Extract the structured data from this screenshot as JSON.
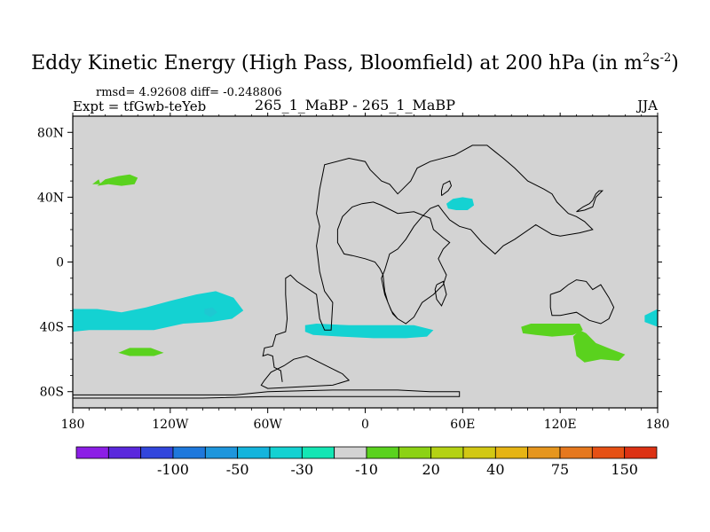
{
  "chart_data": {
    "type": "heatmap",
    "map": "world filled contour plot (cylindrical equidistant)",
    "title": "Eddy Kinetic Energy (High Pass, Bloomfield) at 200 hPa (in m",
    "title_units_suffix": "s",
    "title_sup1": "2",
    "title_sup2": "-2",
    "title_close": ")",
    "stats_label": "rmsd= 4.92608 diff= -0.248806",
    "experiment_label": "Expt = tfGwb-teYeb",
    "center_label": "265_1_MaBP - 265_1_MaBP",
    "season_label": "JJA",
    "xlim": [
      -180,
      180
    ],
    "ylim": [
      -90,
      90
    ],
    "x_ticks": [
      {
        "value": -180,
        "label": "180"
      },
      {
        "value": -120,
        "label": "120W"
      },
      {
        "value": -60,
        "label": "60W"
      },
      {
        "value": 0,
        "label": "0"
      },
      {
        "value": 60,
        "label": "60E"
      },
      {
        "value": 120,
        "label": "120E"
      },
      {
        "value": 180,
        "label": "180"
      }
    ],
    "y_ticks": [
      {
        "value": 80,
        "label": "80N"
      },
      {
        "value": 40,
        "label": "40N"
      },
      {
        "value": 0,
        "label": "0"
      },
      {
        "value": -40,
        "label": "40S"
      },
      {
        "value": -80,
        "label": "80S"
      }
    ],
    "background_color": "#d3d3d3",
    "colorbar": {
      "colors": [
        "#8c1ee6",
        "#5a28dc",
        "#3246dc",
        "#1e78dc",
        "#1e96dc",
        "#14b4dc",
        "#14d2d2",
        "#14e6b4",
        "#d3d3d3",
        "#5ad21e",
        "#8cd214",
        "#b4d214",
        "#d2c814",
        "#e6b414",
        "#e6961e",
        "#e6781e",
        "#e65014",
        "#dc3214"
      ],
      "labels": [
        {
          "after_box": 2,
          "text": "-100"
        },
        {
          "after_box": 4,
          "text": "-50"
        },
        {
          "after_box": 6,
          "text": "-30"
        },
        {
          "after_box": 8,
          "text": "-10"
        },
        {
          "after_box": 10,
          "text": "20"
        },
        {
          "after_box": 12,
          "text": "40"
        },
        {
          "after_box": 14,
          "text": "75"
        },
        {
          "after_box": 16,
          "text": "150"
        }
      ]
    },
    "anomaly_regions": [
      {
        "name": "north-pacific-positive",
        "color": "#5ad21e",
        "lonlat": [
          [
            -165,
            47
          ],
          [
            -160,
            51
          ],
          [
            -152,
            53
          ],
          [
            -145,
            54
          ],
          [
            -140,
            52
          ],
          [
            -142,
            48
          ],
          [
            -150,
            47
          ],
          [
            -158,
            48
          ],
          [
            -165,
            47
          ]
        ]
      },
      {
        "name": "north-pacific-positive-tail",
        "color": "#5ad21e",
        "lonlat": [
          [
            -168,
            48
          ],
          [
            -164,
            51
          ],
          [
            -163,
            48
          ],
          [
            -168,
            48
          ]
        ]
      },
      {
        "name": "eurasia-negative",
        "color": "#14d2d2",
        "lonlat": [
          [
            50,
            36
          ],
          [
            54,
            39
          ],
          [
            60,
            40
          ],
          [
            66,
            39
          ],
          [
            67,
            35
          ],
          [
            63,
            32
          ],
          [
            56,
            32
          ],
          [
            51,
            33
          ],
          [
            50,
            36
          ]
        ]
      },
      {
        "name": "south-pacific-negative",
        "color": "#14d2d2",
        "lonlat": [
          [
            -180,
            -29
          ],
          [
            -165,
            -29
          ],
          [
            -150,
            -31
          ],
          [
            -135,
            -28
          ],
          [
            -120,
            -24
          ],
          [
            -104,
            -20
          ],
          [
            -92,
            -18
          ],
          [
            -81,
            -22
          ],
          [
            -75,
            -30
          ],
          [
            -82,
            -35
          ],
          [
            -95,
            -37
          ],
          [
            -112,
            -38
          ],
          [
            -130,
            -42
          ],
          [
            -150,
            -42
          ],
          [
            -170,
            -42
          ],
          [
            -180,
            -43
          ],
          [
            -180,
            -29
          ]
        ]
      },
      {
        "name": "south-pacific-core",
        "color": "#1ec8d2",
        "lonlat": [
          [
            -99,
            -29
          ],
          [
            -94,
            -28
          ],
          [
            -91,
            -31
          ],
          [
            -95,
            -34
          ],
          [
            -99,
            -32
          ],
          [
            -99,
            -29
          ]
        ]
      },
      {
        "name": "south-atlantic-negative",
        "color": "#14d2d2",
        "lonlat": [
          [
            -37,
            -39
          ],
          [
            -30,
            -38
          ],
          [
            -10,
            -39
          ],
          [
            10,
            -39
          ],
          [
            30,
            -39
          ],
          [
            42,
            -42
          ],
          [
            38,
            -46
          ],
          [
            25,
            -47
          ],
          [
            5,
            -47
          ],
          [
            -15,
            -46
          ],
          [
            -32,
            -45
          ],
          [
            -37,
            -43
          ],
          [
            -37,
            -39
          ]
        ]
      },
      {
        "name": "south-pacific-small-positive",
        "color": "#5ad21e",
        "lonlat": [
          [
            -152,
            -56
          ],
          [
            -145,
            -53
          ],
          [
            -132,
            -53
          ],
          [
            -124,
            -56
          ],
          [
            -130,
            -58
          ],
          [
            -145,
            -58
          ],
          [
            -152,
            -56
          ]
        ]
      },
      {
        "name": "indian-ocean-positive",
        "color": "#5ad21e",
        "lonlat": [
          [
            96,
            -40
          ],
          [
            102,
            -38
          ],
          [
            112,
            -38
          ],
          [
            124,
            -38
          ],
          [
            132,
            -38
          ],
          [
            134,
            -42
          ],
          [
            128,
            -45
          ],
          [
            115,
            -46
          ],
          [
            105,
            -45
          ],
          [
            97,
            -44
          ],
          [
            96,
            -40
          ]
        ]
      },
      {
        "name": "australia-positive",
        "color": "#5ad21e",
        "lonlat": [
          [
            128,
            -46
          ],
          [
            132,
            -42
          ],
          [
            136,
            -44
          ],
          [
            142,
            -50
          ],
          [
            152,
            -54
          ],
          [
            160,
            -57
          ],
          [
            156,
            -61
          ],
          [
            145,
            -60
          ],
          [
            135,
            -62
          ],
          [
            130,
            -58
          ],
          [
            128,
            -46
          ]
        ]
      },
      {
        "name": "dateline-negative",
        "color": "#14d2d2",
        "lonlat": [
          [
            172,
            -33
          ],
          [
            180,
            -29
          ],
          [
            180,
            -40
          ],
          [
            172,
            -37
          ],
          [
            172,
            -33
          ]
        ]
      }
    ],
    "continent_outlines": [
      {
        "name": "afro-eurasia",
        "lonlat": [
          [
            -51,
            -74
          ],
          [
            -52,
            -67
          ],
          [
            -56,
            -65
          ],
          [
            -57,
            -58
          ],
          [
            -60,
            -57
          ],
          [
            -63,
            -58
          ],
          [
            -62,
            -53
          ],
          [
            -57,
            -52
          ],
          [
            -55,
            -45
          ],
          [
            -49,
            -43
          ],
          [
            -48,
            -35
          ],
          [
            -49,
            -20
          ],
          [
            -49,
            -10
          ],
          [
            -46,
            -8
          ],
          [
            -42,
            -12
          ],
          [
            -30,
            -20
          ],
          [
            -28,
            -35
          ],
          [
            -25,
            -42
          ],
          [
            -21,
            -42
          ],
          [
            -20,
            -25
          ],
          [
            -25,
            -18
          ],
          [
            -28,
            -6
          ],
          [
            -30,
            10
          ],
          [
            -28,
            22
          ],
          [
            -30,
            30
          ],
          [
            -28,
            45
          ],
          [
            -26,
            55
          ],
          [
            -25,
            60
          ],
          [
            -10,
            64
          ],
          [
            0,
            62
          ],
          [
            3,
            57
          ],
          [
            10,
            50
          ],
          [
            15,
            48
          ],
          [
            20,
            42
          ],
          [
            23,
            45
          ],
          [
            28,
            50
          ],
          [
            32,
            58
          ],
          [
            40,
            62
          ],
          [
            55,
            66
          ],
          [
            66,
            72
          ],
          [
            75,
            72
          ],
          [
            80,
            68
          ],
          [
            85,
            64
          ],
          [
            92,
            58
          ],
          [
            100,
            50
          ],
          [
            110,
            45
          ],
          [
            115,
            42
          ],
          [
            118,
            37
          ],
          [
            125,
            30
          ],
          [
            130,
            28
          ],
          [
            135,
            25
          ],
          [
            140,
            20
          ],
          [
            132,
            18
          ],
          [
            120,
            16
          ],
          [
            115,
            17
          ],
          [
            105,
            23
          ],
          [
            92,
            14
          ],
          [
            85,
            10
          ],
          [
            80,
            5
          ],
          [
            72,
            12
          ],
          [
            65,
            20
          ],
          [
            58,
            22
          ],
          [
            52,
            26
          ],
          [
            48,
            31
          ],
          [
            45,
            35
          ],
          [
            40,
            33
          ],
          [
            35,
            28
          ],
          [
            30,
            22
          ],
          [
            25,
            14
          ],
          [
            20,
            8
          ],
          [
            15,
            5
          ],
          [
            12,
            -5
          ],
          [
            10,
            -10
          ],
          [
            12,
            -20
          ],
          [
            16,
            -30
          ],
          [
            20,
            -35
          ],
          [
            25,
            -38
          ],
          [
            30,
            -34
          ],
          [
            35,
            -25
          ],
          [
            42,
            -20
          ],
          [
            48,
            -14
          ],
          [
            50,
            -8
          ],
          [
            47,
            -2
          ],
          [
            45,
            2
          ],
          [
            48,
            8
          ],
          [
            52,
            12
          ],
          [
            48,
            15
          ],
          [
            42,
            20
          ],
          [
            40,
            27
          ],
          [
            30,
            31
          ],
          [
            20,
            30
          ],
          [
            10,
            35
          ],
          [
            5,
            37
          ],
          [
            -2,
            36
          ],
          [
            -8,
            34
          ],
          [
            -14,
            28
          ],
          [
            -17,
            20
          ],
          [
            -17,
            12
          ],
          [
            -13,
            5
          ],
          [
            -8,
            4
          ],
          [
            0,
            2
          ],
          [
            6,
            0
          ],
          [
            9,
            -4
          ],
          [
            11,
            -8
          ],
          [
            12,
            -18
          ],
          [
            14,
            -25
          ],
          [
            17,
            -32
          ],
          [
            20,
            -35
          ]
        ]
      },
      {
        "name": "indian-ocean-island",
        "lonlat": [
          [
            44,
            -14
          ],
          [
            48,
            -12
          ],
          [
            50,
            -20
          ],
          [
            47,
            -27
          ],
          [
            44,
            -23
          ],
          [
            43,
            -17
          ],
          [
            44,
            -14
          ]
        ]
      },
      {
        "name": "australia",
        "lonlat": [
          [
            114,
            -20
          ],
          [
            120,
            -18
          ],
          [
            125,
            -14
          ],
          [
            130,
            -11
          ],
          [
            136,
            -12
          ],
          [
            140,
            -17
          ],
          [
            145,
            -14
          ],
          [
            150,
            -22
          ],
          [
            153,
            -28
          ],
          [
            150,
            -35
          ],
          [
            145,
            -38
          ],
          [
            138,
            -36
          ],
          [
            130,
            -31
          ],
          [
            120,
            -33
          ],
          [
            115,
            -33
          ],
          [
            114,
            -28
          ],
          [
            114,
            -20
          ]
        ]
      },
      {
        "name": "antarctica",
        "lonlat": [
          [
            -180,
            -82
          ],
          [
            -160,
            -82
          ],
          [
            -130,
            -82
          ],
          [
            -100,
            -82
          ],
          [
            -80,
            -82
          ],
          [
            -60,
            -80
          ],
          [
            -20,
            -79
          ],
          [
            20,
            -79
          ],
          [
            40,
            -80
          ],
          [
            58,
            -80
          ],
          [
            58,
            -83
          ],
          [
            20,
            -83
          ],
          [
            -20,
            -83
          ],
          [
            -60,
            -83
          ],
          [
            -100,
            -84
          ],
          [
            -140,
            -84
          ],
          [
            -180,
            -84
          ]
        ]
      },
      {
        "name": "antarctic-peninsula",
        "lonlat": [
          [
            -62,
            -73
          ],
          [
            -58,
            -68
          ],
          [
            -50,
            -64
          ],
          [
            -44,
            -60
          ],
          [
            -36,
            -58
          ],
          [
            -28,
            -62
          ],
          [
            -22,
            -65
          ],
          [
            -14,
            -69
          ],
          [
            -10,
            -73
          ],
          [
            -20,
            -76
          ],
          [
            -40,
            -77
          ],
          [
            -60,
            -78
          ],
          [
            -64,
            -76
          ],
          [
            -62,
            -73
          ]
        ]
      },
      {
        "name": "caspian-outline",
        "lonlat": [
          [
            47,
            41
          ],
          [
            51,
            44
          ],
          [
            53,
            47
          ],
          [
            52,
            50
          ],
          [
            48,
            48
          ],
          [
            47,
            44
          ],
          [
            47,
            41
          ]
        ]
      },
      {
        "name": "japan-outline",
        "lonlat": [
          [
            130,
            31
          ],
          [
            134,
            34
          ],
          [
            138,
            36
          ],
          [
            140,
            38
          ],
          [
            142,
            42
          ],
          [
            144,
            44
          ],
          [
            146,
            44
          ],
          [
            142,
            40
          ],
          [
            140,
            34
          ],
          [
            135,
            32
          ],
          [
            130,
            31
          ]
        ]
      }
    ]
  }
}
